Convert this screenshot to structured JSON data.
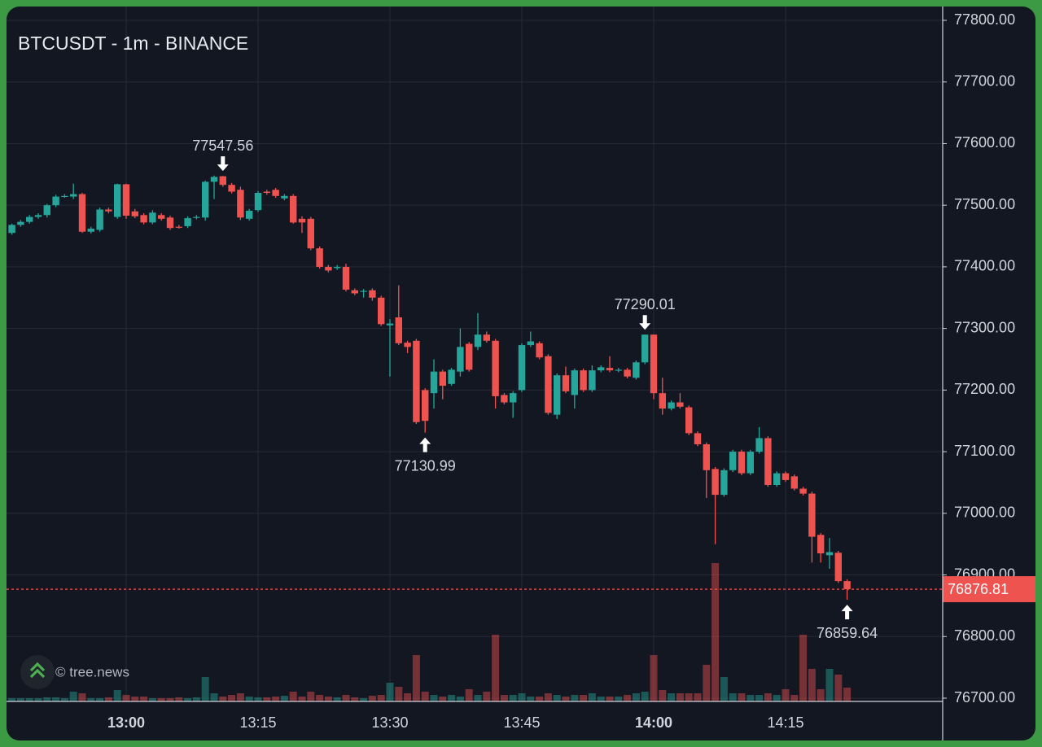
{
  "chart_data": {
    "type": "candlestick",
    "title": "BTCUSDT - 1m - BINANCE",
    "watermark": "© tree.news",
    "up_color": "#26a69a",
    "down_color": "#ef5350",
    "grid": true,
    "categories": [
      "12:47",
      "12:48",
      "12:49",
      "12:50",
      "12:51",
      "12:52",
      "12:53",
      "12:54",
      "12:55",
      "12:56",
      "12:57",
      "12:58",
      "12:59",
      "13:00",
      "13:01",
      "13:02",
      "13:03",
      "13:04",
      "13:05",
      "13:06",
      "13:07",
      "13:08",
      "13:09",
      "13:10",
      "13:11",
      "13:12",
      "13:13",
      "13:14",
      "13:15",
      "13:16",
      "13:17",
      "13:18",
      "13:19",
      "13:20",
      "13:21",
      "13:22",
      "13:23",
      "13:24",
      "13:25",
      "13:26",
      "13:27",
      "13:28",
      "13:29",
      "13:30",
      "13:31",
      "13:32",
      "13:33",
      "13:34",
      "13:35",
      "13:36",
      "13:37",
      "13:38",
      "13:39",
      "13:40",
      "13:41",
      "13:42",
      "13:43",
      "13:44",
      "13:45",
      "13:46",
      "13:47",
      "13:48",
      "13:49",
      "13:50",
      "13:51",
      "13:52",
      "13:53",
      "13:54",
      "13:55",
      "13:56",
      "13:57",
      "13:58",
      "13:59",
      "14:00",
      "14:01",
      "14:02",
      "14:03",
      "14:04",
      "14:05",
      "14:06",
      "14:07",
      "14:08",
      "14:09",
      "14:10",
      "14:11",
      "14:12",
      "14:13",
      "14:14",
      "14:15",
      "14:16",
      "14:17",
      "14:18",
      "14:19",
      "14:20",
      "14:21",
      "14:22"
    ],
    "open": [
      77455,
      77468,
      77473,
      77481,
      77484,
      77500,
      77514,
      77514,
      77518,
      77457,
      77460,
      77493,
      77481,
      77534,
      77490,
      77484,
      77472,
      77484,
      77480,
      77465,
      77466,
      77480,
      77480,
      77538,
      77547,
      77533,
      77525,
      77478,
      77492,
      77522,
      77525,
      77511,
      77515,
      77478,
      77478,
      77430,
      77400,
      77398,
      77400,
      77362,
      77360,
      77362,
      77350,
      77305,
      77318,
      77277,
      77280,
      77200,
      77195,
      77230,
      77210,
      77230,
      77275,
      77270,
      77290,
      77280,
      77192,
      77180,
      77200,
      77273,
      77276,
      77255,
      77160,
      77224,
      77192,
      77232,
      77200,
      77232,
      77236,
      77232,
      77233,
      77220,
      77245,
      77290,
      77195,
      77170,
      77180,
      77172,
      77130,
      77112,
      77072,
      77030,
      77070,
      77100,
      77065,
      77100,
      77122,
      77046,
      77065,
      77060,
      77040,
      77032,
      76965,
      76932,
      76936,
      76890
    ],
    "high": [
      77470,
      77476,
      77484,
      77487,
      77502,
      77517,
      77518,
      77535,
      77520,
      77465,
      77496,
      77496,
      77535,
      77535,
      77494,
      77487,
      77492,
      77487,
      77483,
      77468,
      77482,
      77484,
      77540,
      77548,
      77547.56,
      77536,
      77530,
      77494,
      77523,
      77525,
      77528,
      77518,
      77518,
      77482,
      77481,
      77433,
      77403,
      77403,
      77405,
      77365,
      77364,
      77365,
      77353,
      77315,
      77370,
      77280,
      77283,
      77203,
      77250,
      77233,
      77236,
      77300,
      77278,
      77325,
      77295,
      77283,
      77195,
      77198,
      77276,
      77295,
      77279,
      77258,
      77227,
      77238,
      77235,
      77235,
      77240,
      77240,
      77255,
      77236,
      77236,
      77248,
      77290.01,
      77290,
      77220,
      77183,
      77195,
      77175,
      77133,
      77115,
      77075,
      77073,
      77103,
      77103,
      77103,
      77140,
      77125,
      77068,
      77068,
      77063,
      77043,
      77035,
      76968,
      76960,
      76939,
      76893
    ],
    "low": [
      77452,
      77465,
      77470,
      77478,
      77480,
      77497,
      77512,
      77510,
      77455,
      77454,
      77457,
      77487,
      77478,
      77478,
      77479,
      77469,
      77469,
      77475,
      77460,
      77462,
      77463,
      77477,
      77475,
      77510,
      77530,
      77519,
      77476,
      77475,
      77489,
      77517,
      77512,
      77508,
      77470,
      77455,
      77427,
      77397,
      77391,
      77395,
      77360,
      77354,
      77350,
      77345,
      77304,
      77222,
      77273,
      77260,
      77145,
      77130.99,
      77170,
      77185,
      77207,
      77222,
      77230,
      77265,
      77277,
      77170,
      77177,
      77155,
      77197,
      77270,
      77250,
      77160,
      77153,
      77195,
      77170,
      77197,
      77197,
      77229,
      77229,
      77229,
      77219,
      77217,
      77242,
      77185,
      77160,
      77167,
      77170,
      77127,
      77109,
      77025,
      76950,
      77027,
      77067,
      77062,
      77062,
      77097,
      77043,
      77043,
      77051,
      77037,
      77029,
      76920,
      76920,
      76910,
      76887,
      76859.64
    ],
    "close": [
      77468,
      77473,
      77481,
      77484,
      77500,
      77514,
      77515,
      77518,
      77457,
      77462,
      77493,
      77490,
      77534,
      77483,
      77482,
      77472,
      77488,
      77478,
      77463,
      77464,
      77479,
      77481,
      77538,
      77546,
      77533,
      77522,
      77480,
      77491,
      77520,
      77520,
      77515,
      77515,
      77472,
      77472,
      77430,
      77400,
      77394,
      77400,
      77363,
      77357,
      77361,
      77350,
      77307,
      77308,
      77276,
      77270,
      77148,
      77150,
      77230,
      77207,
      77233,
      77270,
      77233,
      77290,
      77280,
      77190,
      77180,
      77195,
      77273,
      77279,
      77253,
      77163,
      77224,
      77198,
      77232,
      77200,
      77232,
      77237,
      77232,
      77233,
      77222,
      77245,
      77290,
      77195,
      77170,
      77180,
      77173,
      77130,
      77112,
      77070,
      77030,
      77070,
      77100,
      77065,
      77100,
      77122,
      77046,
      77065,
      77054,
      77040,
      77032,
      76962,
      76935,
      76937,
      76890,
      76876.81
    ],
    "volume": [
      4,
      4,
      4,
      4,
      5,
      5,
      4,
      12,
      10,
      4,
      4,
      5,
      14,
      8,
      6,
      6,
      4,
      4,
      4,
      5,
      4,
      5,
      30,
      10,
      6,
      8,
      10,
      6,
      5,
      5,
      6,
      7,
      12,
      6,
      12,
      8,
      6,
      5,
      8,
      5,
      4,
      7,
      8,
      23,
      18,
      10,
      57,
      12,
      8,
      6,
      8,
      6,
      15,
      8,
      12,
      82,
      8,
      8,
      10,
      6,
      6,
      10,
      8,
      6,
      8,
      8,
      10,
      6,
      6,
      6,
      8,
      10,
      12,
      57,
      14,
      10,
      10,
      10,
      10,
      45,
      170,
      30,
      10,
      10,
      8,
      8,
      10,
      8,
      15,
      8,
      82,
      40,
      15,
      40,
      33,
      17
    ],
    "ylim": [
      76700,
      77800
    ],
    "yticks": [
      {
        "value": 76700,
        "label": "76700.00"
      },
      {
        "value": 76800,
        "label": "76800.00"
      },
      {
        "value": 76900,
        "label": "76900.00"
      },
      {
        "value": 77000,
        "label": "77000.00"
      },
      {
        "value": 77100,
        "label": "77100.00"
      },
      {
        "value": 77200,
        "label": "77200.00"
      },
      {
        "value": 77300,
        "label": "77300.00"
      },
      {
        "value": 77400,
        "label": "77400.00"
      },
      {
        "value": 77500,
        "label": "77500.00"
      },
      {
        "value": 77600,
        "label": "77600.00"
      },
      {
        "value": 77700,
        "label": "77700.00"
      },
      {
        "value": 77800,
        "label": "77800.00"
      }
    ],
    "xticks": [
      "13:00",
      "13:15",
      "13:30",
      "13:45",
      "14:00",
      "14:15"
    ],
    "last_price": 76876.81,
    "markers": [
      {
        "x": "13:11",
        "value": 77547.56,
        "position": "above"
      },
      {
        "x": "13:34",
        "value": 77130.99,
        "position": "below"
      },
      {
        "x": "13:59",
        "value": 77290.01,
        "position": "above"
      },
      {
        "x": "14:22",
        "value": 76859.64,
        "position": "below"
      }
    ]
  }
}
